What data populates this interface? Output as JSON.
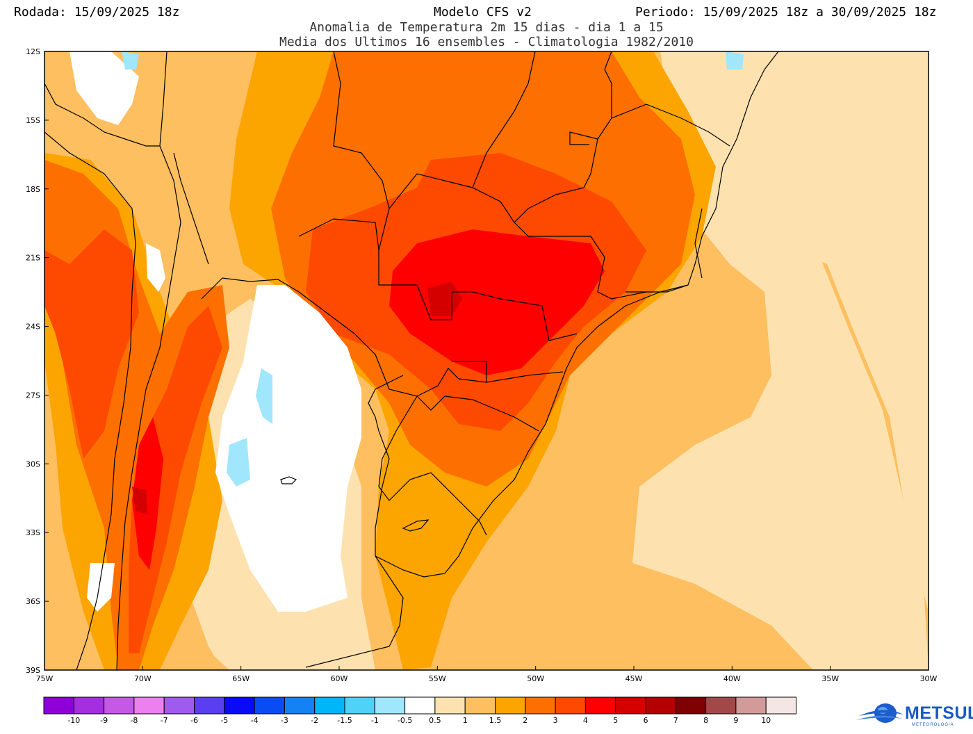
{
  "header": {
    "rodada": "Rodada: 15/09/2025 18z",
    "modelo": "Modelo CFS v2",
    "periodo": "Periodo: 15/09/2025 18z a 30/09/2025 18z",
    "line2": "Anomalia de Temperatura 2m 15 dias - dia 1 a 15",
    "line3": "Media dos Ultimos 16 ensembles - Climatologia 1982/2010"
  },
  "axes": {
    "lat_labels": [
      "12S",
      "15S",
      "18S",
      "21S",
      "24S",
      "27S",
      "30S",
      "33S",
      "36S",
      "39S"
    ],
    "lon_labels": [
      "75W",
      "70W",
      "65W",
      "60W",
      "55W",
      "50W",
      "45W",
      "40W",
      "35W",
      "30W"
    ]
  },
  "colorbar": {
    "labels": [
      "-10",
      "-9",
      "-8",
      "-7",
      "-6",
      "-5",
      "-4",
      "-3",
      "-2",
      "-1.5",
      "-1",
      "-0.5",
      "0.5",
      "1",
      "1.5",
      "2",
      "3",
      "4",
      "5",
      "6",
      "7",
      "8",
      "9",
      "10"
    ],
    "colors": [
      "#8f00d8",
      "#a42fe0",
      "#c459e6",
      "#ec80ee",
      "#9f5aee",
      "#5a3ff2",
      "#0a0af6",
      "#0a4cf4",
      "#1482f4",
      "#00b5f8",
      "#50d2f8",
      "#a0e6fc",
      "#ffffff",
      "#fde2b0",
      "#fdbf5f",
      "#fca500",
      "#fd7000",
      "#fd4a00",
      "#ff0000",
      "#d40000",
      "#b40000",
      "#7e0000",
      "#a24848",
      "#d49a9a",
      "#f4e6e4"
    ]
  },
  "map_colors": {
    "w": "#ffffff",
    "c1": "#a0e6fc",
    "a1": "#fde2b0",
    "a2": "#fdbf5f",
    "a3": "#fca500",
    "a4": "#fd7000",
    "a5": "#fd4a00",
    "a6": "#ff0000",
    "a7": "#d40000"
  },
  "logo": {
    "name": "METSUL",
    "sub": "METEOROLOGIA"
  }
}
